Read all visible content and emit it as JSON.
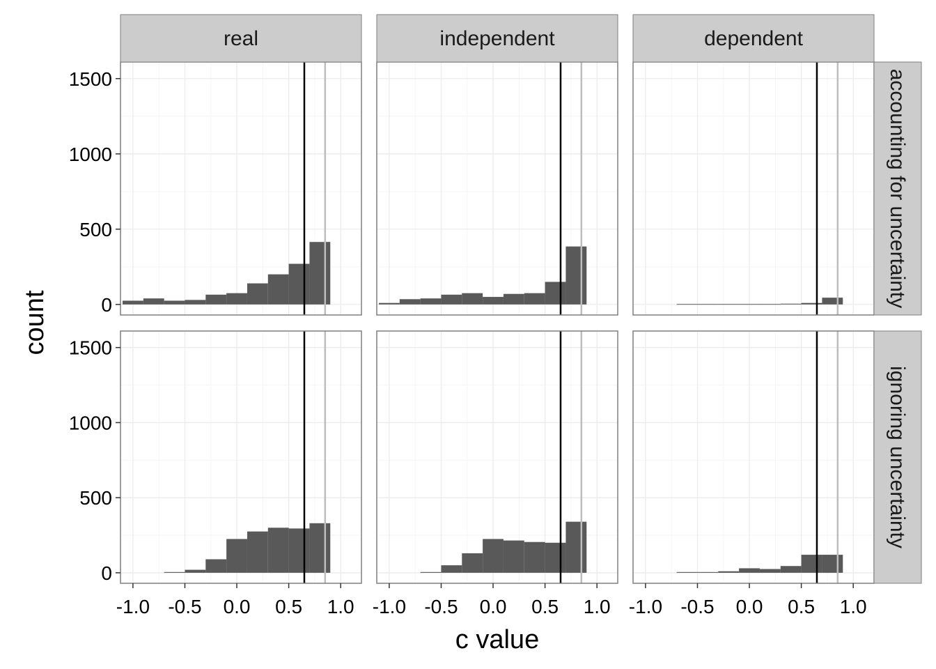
{
  "chart_data": {
    "type": "bar",
    "subtype": "histogram-facet-grid",
    "xlabel": "c value",
    "ylabel": "count",
    "xlim": [
      -1.12,
      1.2
    ],
    "ylim": [
      -70,
      1610
    ],
    "x_ticks": [
      -1.0,
      -0.5,
      0.0,
      0.5,
      1.0
    ],
    "x_tick_labels": [
      "-1.0",
      "-0.5",
      "0.0",
      "0.5",
      "1.0"
    ],
    "y_ticks": [
      0,
      500,
      1000,
      1500
    ],
    "y_tick_labels": [
      "0",
      "500",
      "1000",
      "1500"
    ],
    "grid": true,
    "bin_width": 0.2,
    "bin_edges": [
      -1.1,
      -0.9,
      -0.7,
      -0.5,
      -0.3,
      -0.1,
      0.1,
      0.3,
      0.5,
      0.7,
      0.9
    ],
    "vlines": [
      {
        "x": 0.65,
        "color": "#000000"
      },
      {
        "x": 0.85,
        "color": "#bdbdbd"
      }
    ],
    "columns": [
      "real",
      "independent",
      "dependent"
    ],
    "rows": [
      "accounting for uncertainty",
      "ignoring uncertainty"
    ],
    "panels": [
      {
        "row": "accounting for uncertainty",
        "column": "real",
        "counts": [
          25,
          40,
          25,
          30,
          65,
          75,
          140,
          200,
          270,
          415
        ]
      },
      {
        "row": "accounting for uncertainty",
        "column": "independent",
        "counts": [
          10,
          35,
          40,
          65,
          75,
          50,
          70,
          75,
          150,
          385
        ]
      },
      {
        "row": "accounting for uncertainty",
        "column": "dependent",
        "counts": [
          0,
          0,
          3,
          3,
          3,
          3,
          3,
          5,
          10,
          45
        ]
      },
      {
        "row": "ignoring uncertainty",
        "column": "real",
        "counts": [
          0,
          0,
          5,
          20,
          90,
          225,
          275,
          300,
          295,
          330
        ]
      },
      {
        "row": "ignoring uncertainty",
        "column": "independent",
        "counts": [
          0,
          0,
          5,
          50,
          130,
          225,
          215,
          205,
          200,
          340
        ]
      },
      {
        "row": "ignoring uncertainty",
        "column": "dependent",
        "counts": [
          0,
          0,
          5,
          5,
          10,
          30,
          25,
          45,
          120,
          120
        ]
      }
    ]
  },
  "colors": {
    "bar": "#595959",
    "panel_border": "#7f7f7f",
    "strip_fill": "#cccccc",
    "grid_major": "#ebebeb",
    "grid_minor": "#f5f5f5",
    "tick": "#333333"
  }
}
